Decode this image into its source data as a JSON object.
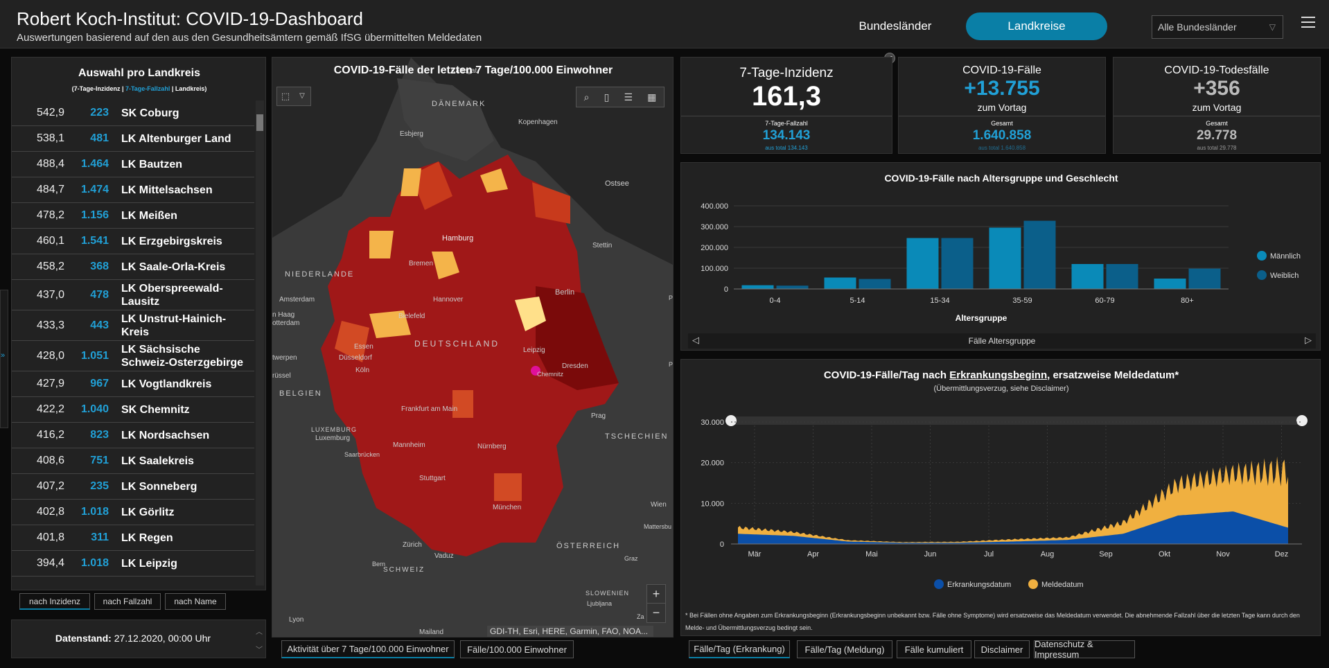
{
  "header": {
    "title": "Robert Koch-Institut: COVID-19-Dashboard",
    "subtitle": "Auswertungen basierend auf den aus den Gesundheitsämtern gemäß IfSG übermittelten Meldedaten",
    "nav_bundeslaender": "Bundesländer",
    "nav_landkreise": "Landkreise",
    "region_select": "Alle Bundesländer"
  },
  "list": {
    "title": "Auswahl pro Landkreis",
    "sub_a": "(7-Tage-Inzidenz | ",
    "sub_b": "7-Tage-Fallzahl",
    "sub_c": " | Landkreis)",
    "rows": [
      {
        "inz": "542,9",
        "fall": "223",
        "name": "SK Coburg"
      },
      {
        "inz": "538,1",
        "fall": "481",
        "name": "LK Altenburger Land"
      },
      {
        "inz": "488,4",
        "fall": "1.464",
        "name": "LK Bautzen"
      },
      {
        "inz": "484,7",
        "fall": "1.474",
        "name": "LK Mittelsachsen"
      },
      {
        "inz": "478,2",
        "fall": "1.156",
        "name": "LK Meißen"
      },
      {
        "inz": "460,1",
        "fall": "1.541",
        "name": "LK Erzgebirgskreis"
      },
      {
        "inz": "458,2",
        "fall": "368",
        "name": "LK Saale-Orla-Kreis"
      },
      {
        "inz": "437,0",
        "fall": "478",
        "name": "LK Oberspreewald-Lausitz"
      },
      {
        "inz": "433,3",
        "fall": "443",
        "name": "LK Unstrut-Hainich-Kreis"
      },
      {
        "inz": "428,0",
        "fall": "1.051",
        "name": "LK Sächsische Schweiz-Osterzgebirge"
      },
      {
        "inz": "427,9",
        "fall": "967",
        "name": "LK Vogtlandkreis"
      },
      {
        "inz": "422,2",
        "fall": "1.040",
        "name": "SK Chemnitz"
      },
      {
        "inz": "416,2",
        "fall": "823",
        "name": "LK Nordsachsen"
      },
      {
        "inz": "408,6",
        "fall": "751",
        "name": "LK Saalekreis"
      },
      {
        "inz": "407,2",
        "fall": "235",
        "name": "LK Sonneberg"
      },
      {
        "inz": "402,8",
        "fall": "1.018",
        "name": "LK Görlitz"
      },
      {
        "inz": "401,8",
        "fall": "311",
        "name": "LK Regen"
      },
      {
        "inz": "394,4",
        "fall": "1.018",
        "name": "LK Leipzig"
      }
    ],
    "sort_inzidenz": "nach Inzidenz",
    "sort_fallzahl": "nach Fallzahl",
    "sort_name": "nach Name",
    "datenstand_label": "Datenstand:",
    "datenstand_value": " 27.12.2020, 00:00 Uhr"
  },
  "map": {
    "title": "COVID-19-Fälle der letzten 7 Tage/100.000 Einwohner",
    "attribution": "GDI-TH, Esri, HERE, Garmin, FAO, NOA...",
    "labels": {
      "kattegat": "Kattegat",
      "daenemark": "DÄNEMARK",
      "kopenhagen": "Kopenhagen",
      "esbjerg": "Esbjerg",
      "ostsee": "Ostsee",
      "hamburg": "Hamburg",
      "stettin": "Stettin",
      "bremen": "Bremen",
      "niederlande": "NIEDERLANDE",
      "amsterdam": "Amsterdam",
      "hannover": "Hannover",
      "berlin": "Berlin",
      "den_haag": "n Haag",
      "rotterdam": "otterdam",
      "bielefeld": "Bielefeld",
      "deutschland": "DEUTSCHLAND",
      "essen": "Essen",
      "leipzig": "Leipzig",
      "antwerpen": "twerpen",
      "duesseldorf": "Düsseldorf",
      "dresden": "Dresden",
      "koeln": "Köln",
      "bruessel": "rüssel",
      "chemnitz": "Chemnitz",
      "belgien": "BELGIEN",
      "frankfurt": "Frankfurt am Main",
      "prag": "Prag",
      "luxemburg_c": "LUXEMBURG",
      "luxemburg": "Luxemburg",
      "tschechien": "TSCHECHIEN",
      "saarbruecken": "Saarbrücken",
      "mannheim": "Mannheim",
      "nuernberg": "Nürnberg",
      "stuttgart": "Stuttgart",
      "wien": "Wien",
      "mattersburg": "Mattersbu",
      "muenchen": "München",
      "zuerich": "Zürich",
      "oesterreich": "ÖSTERREICH",
      "vaduz": "Vaduz",
      "graz": "Graz",
      "bern": "Bern",
      "schweiz": "SCHWEIZ",
      "slowenien": "SLOWENIEN",
      "ljubljana": "Ljubljana",
      "lyon": "Lyon",
      "mailand": "Mailand",
      "za": "Za",
      "p1": "P",
      "p2": "P"
    },
    "zoom_in": "+",
    "zoom_out": "−"
  },
  "map_tabs": [
    "Aktivität über 7 Tage/100.000 Einwohner",
    "Fälle/100.000 Einwohner"
  ],
  "kpi": {
    "inzidenz_title": "7-Tage-Inzidenz",
    "inzidenz_value": "161,3",
    "fallzahl_label": "7-Tage-Fallzahl",
    "fallzahl_value": "134.143",
    "fallzahl_total": "aus total 134.143",
    "faelle_title": "COVID-19-Fälle",
    "faelle_value": "+13.755",
    "faelle_sub": "zum Vortag",
    "faelle_gesamt_label": "Gesamt",
    "faelle_gesamt": "1.640.858",
    "faelle_gesamt_total": "aus total 1.640.858",
    "tod_title": "COVID-19-Todesfälle",
    "tod_value": "+356",
    "tod_sub": "zum Vortag",
    "tod_gesamt_label": "Gesamt",
    "tod_gesamt": "29.778",
    "tod_gesamt_total": "aus total 29.778"
  },
  "colors": {
    "maennlich": "#0a8ab8",
    "weiblich": "#0b5f8a",
    "erkrankung": "#0b4fa8",
    "melde": "#f0b040",
    "accent": "#21a0d6"
  },
  "chart_data": [
    {
      "type": "bar",
      "title": "COVID-19-Fälle nach Altersgruppe und Geschlecht",
      "xlabel": "Altersgruppe",
      "ylabel": "",
      "categories": [
        "0-4",
        "5-14",
        "15-34",
        "35-59",
        "60-79",
        "80+"
      ],
      "series": [
        {
          "name": "Männlich",
          "values": [
            18000,
            55000,
            245000,
            295000,
            120000,
            50000
          ]
        },
        {
          "name": "Weiblich",
          "values": [
            16000,
            48000,
            245000,
            328000,
            120000,
            98000
          ]
        }
      ],
      "ylim": [
        0,
        400000
      ],
      "yticks": [
        "0",
        "100.000",
        "200.000",
        "300.000",
        "400.000"
      ],
      "yticks_values": [
        0,
        100000,
        200000,
        300000,
        400000
      ],
      "legend": "right",
      "footer": "Fälle Altersgruppe"
    },
    {
      "type": "area",
      "title_a": "COVID-19-Fälle/Tag nach ",
      "title_b": "Erkrankungsbeginn",
      "title_c": ", ersatzweise Meldedatum*",
      "subtitle": "(Übermittlungsverzug, siehe Disclaimer)",
      "xticks": [
        "Mär",
        "Apr",
        "Mai",
        "Jun",
        "Jul",
        "Aug",
        "Sep",
        "Okt",
        "Nov",
        "Dez"
      ],
      "yticks": [
        "0",
        "10.000",
        "20.000",
        "30.000"
      ],
      "yticks_values": [
        0,
        10000,
        20000,
        30000
      ],
      "ylim": [
        0,
        30000
      ],
      "series": [
        {
          "name": "Erkrankungsdatum",
          "monthly_approx": [
            2500,
            2000,
            600,
            300,
            300,
            600,
            1000,
            2500,
            7000,
            8000,
            4000
          ]
        },
        {
          "name": "Meldedatum",
          "monthly_approx": [
            2000,
            1200,
            400,
            200,
            300,
            700,
            800,
            3500,
            10000,
            12000,
            18000
          ]
        }
      ],
      "disclaimer": "* Bei Fällen ohne Angaben zum Erkrankungsbeginn (Erkrankungsbeginn unbekannt bzw. Fälle ohne Symptome) wird ersatzweise das Meldedatum verwendet. Die abnehmende Fallzahl über die letzten Tage kann durch den Melde- und Übermittlungsverzug bedingt sein."
    }
  ],
  "bottom_tabs": [
    "Fälle/Tag (Erkrankung)",
    "Fälle/Tag (Meldung)",
    "Fälle kumuliert",
    "Disclaimer",
    "Datenschutz & Impressum"
  ]
}
